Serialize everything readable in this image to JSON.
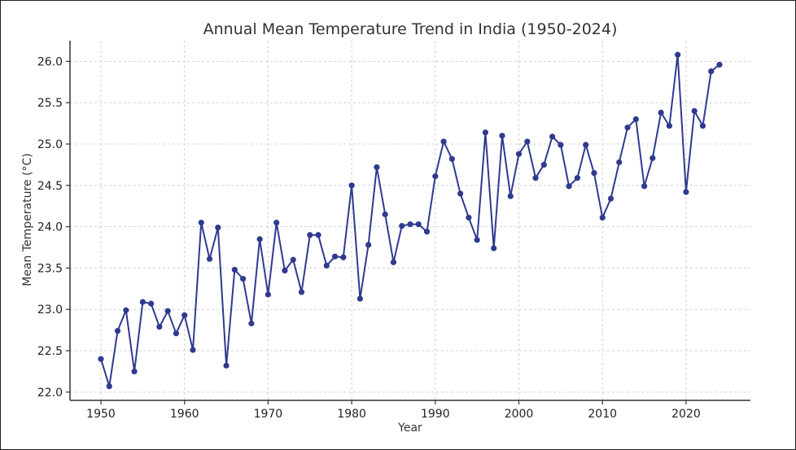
{
  "chart_data": {
    "type": "line",
    "title": "Annual Mean Temperature Trend in India (1950-2024)",
    "xlabel": "Year",
    "ylabel": "Mean Temperature (°C)",
    "xlim": [
      1946.3,
      2027.7
    ],
    "ylim": [
      21.9,
      26.25
    ],
    "xticks": [
      1950,
      1960,
      1970,
      1980,
      1990,
      2000,
      2010,
      2020
    ],
    "yticks": [
      22.0,
      22.5,
      23.0,
      23.5,
      24.0,
      24.5,
      25.0,
      25.5,
      26.0
    ],
    "grid": true,
    "color": "#2f3a8f",
    "series": [
      {
        "name": "Mean Temperature",
        "x": [
          1950,
          1951,
          1952,
          1953,
          1954,
          1955,
          1956,
          1957,
          1958,
          1959,
          1960,
          1961,
          1962,
          1963,
          1964,
          1965,
          1966,
          1967,
          1968,
          1969,
          1970,
          1971,
          1972,
          1973,
          1974,
          1975,
          1976,
          1977,
          1978,
          1979,
          1980,
          1981,
          1982,
          1983,
          1984,
          1985,
          1986,
          1987,
          1988,
          1989,
          1990,
          1991,
          1992,
          1993,
          1994,
          1995,
          1996,
          1997,
          1998,
          1999,
          2000,
          2001,
          2002,
          2003,
          2004,
          2005,
          2006,
          2007,
          2008,
          2009,
          2010,
          2011,
          2012,
          2013,
          2014,
          2015,
          2016,
          2017,
          2018,
          2019,
          2020,
          2021,
          2022,
          2023,
          2024
        ],
        "y": [
          22.4,
          22.07,
          22.74,
          22.99,
          22.25,
          23.09,
          23.07,
          22.79,
          22.98,
          22.71,
          22.93,
          22.51,
          24.05,
          23.61,
          23.99,
          22.32,
          23.48,
          23.37,
          22.83,
          23.85,
          23.18,
          24.05,
          23.47,
          23.6,
          23.21,
          23.9,
          23.9,
          23.53,
          23.64,
          23.63,
          24.5,
          23.13,
          23.78,
          24.72,
          24.15,
          23.57,
          24.01,
          24.03,
          24.03,
          23.94,
          24.61,
          25.03,
          24.82,
          24.4,
          24.11,
          23.84,
          25.14,
          23.74,
          25.1,
          24.37,
          24.88,
          25.03,
          24.59,
          24.75,
          25.09,
          24.99,
          24.49,
          24.59,
          24.99,
          24.65,
          24.11,
          24.34,
          24.78,
          25.2,
          25.3,
          24.49,
          24.83,
          25.38,
          25.22,
          26.08,
          24.42,
          25.4,
          25.22,
          25.88,
          25.96
        ]
      }
    ]
  }
}
